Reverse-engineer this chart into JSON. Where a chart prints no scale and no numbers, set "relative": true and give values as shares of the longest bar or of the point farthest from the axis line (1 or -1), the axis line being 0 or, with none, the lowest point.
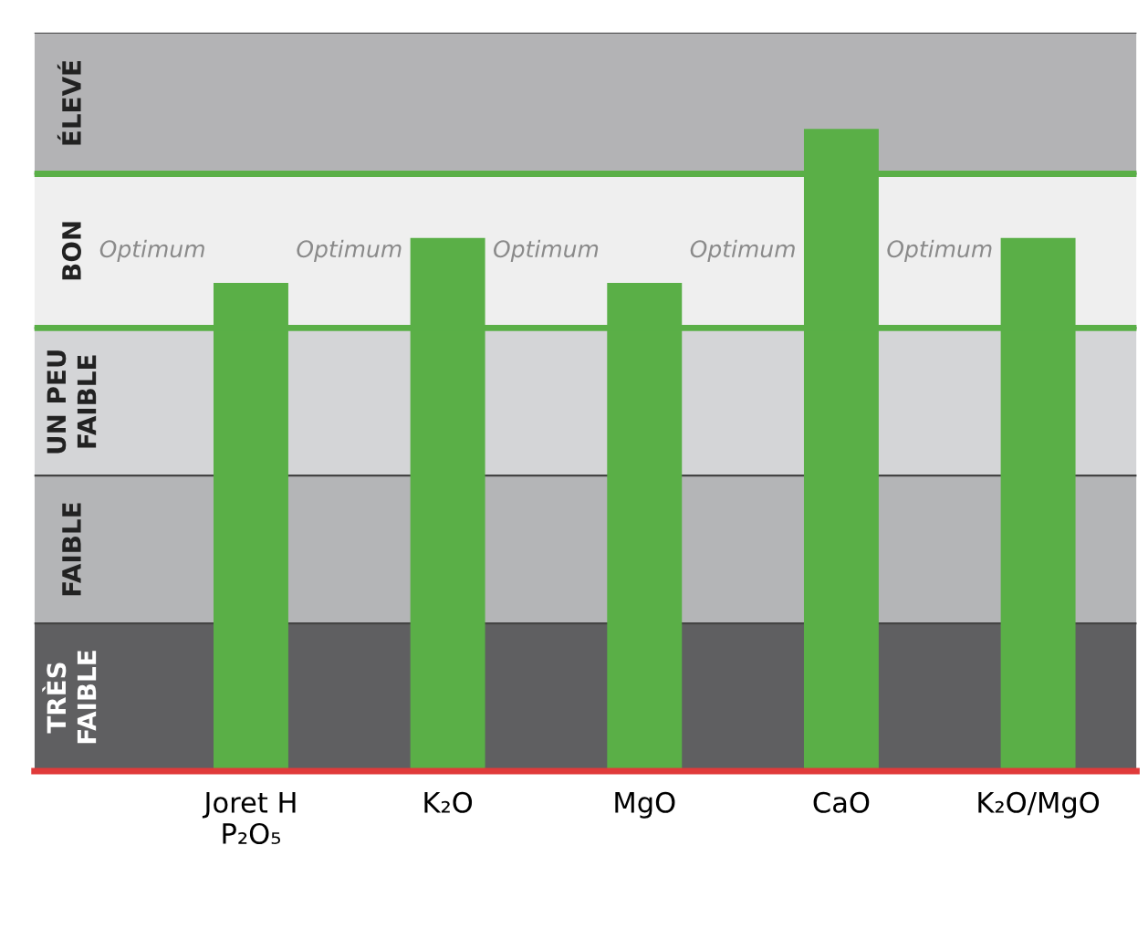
{
  "chart_data": {
    "type": "bar",
    "relative": true,
    "categories": [
      "Joret H\nP₂O₅",
      "K₂O",
      "MgO",
      "CaO",
      "K₂O/MgO"
    ],
    "values": [
      0.76,
      0.83,
      0.76,
      1.0,
      0.83
    ],
    "color": "#5aaf47",
    "bands": [
      {
        "axis": "y",
        "from": 0,
        "to": 0.23,
        "label": "TRÈS\nFAIBLE",
        "color": "#5f5f61"
      },
      {
        "axis": "y",
        "from": 0.23,
        "to": 0.46,
        "label": "FAIBLE",
        "color": "#b4b5b7"
      },
      {
        "axis": "y",
        "from": 0.46,
        "to": 0.69,
        "label": "UN PEU\nFAIBLE",
        "color": "#d4d5d7"
      },
      {
        "axis": "y",
        "from": 0.69,
        "to": 0.93,
        "label": "BON",
        "color": "#efefef"
      },
      {
        "axis": "y",
        "from": 0.93,
        "to": 1.15,
        "label": "ÉLEVÉ",
        "color": "#b3b3b5"
      }
    ],
    "ref_lines": [
      {
        "axis": "y",
        "value": 0.69,
        "color": "#5aaf47"
      },
      {
        "axis": "y",
        "value": 0.93,
        "color": "#5aaf47"
      }
    ],
    "annotations": [
      "Optimum",
      "Optimum",
      "Optimum",
      "Optimum",
      "Optimum"
    ],
    "grid": false,
    "legend": false
  }
}
